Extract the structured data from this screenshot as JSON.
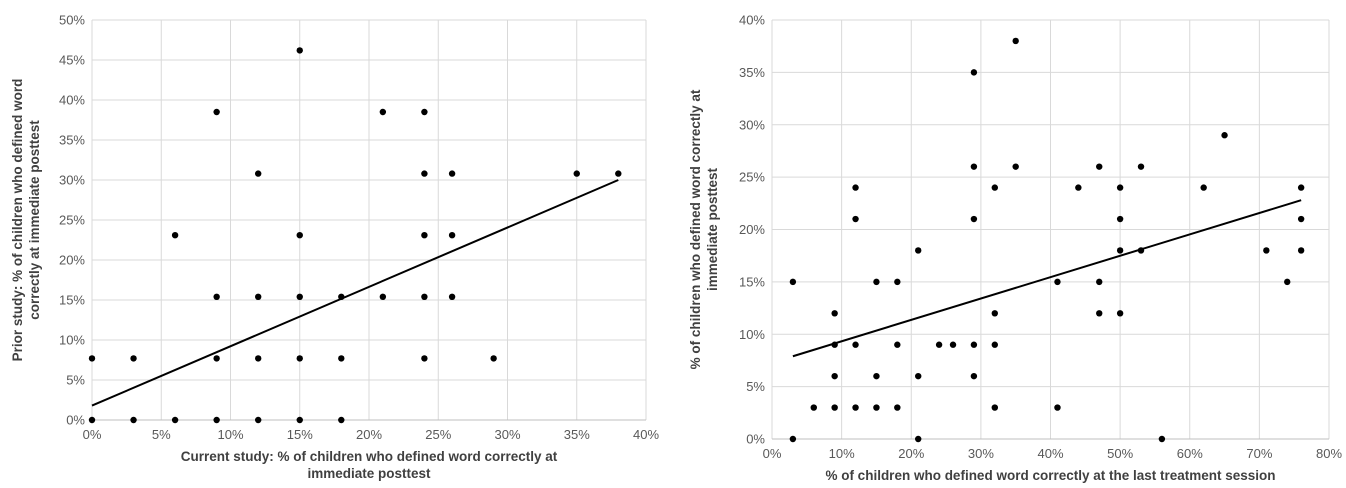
{
  "chart_data": [
    {
      "type": "scatter",
      "xlabel": "Current study: % of children who defined word correctly at immediate posttest",
      "ylabel": "Prior study: % of children who defined word correctly at immediate posttest",
      "xlim": [
        0,
        40
      ],
      "ylim": [
        0,
        50
      ],
      "x_ticks": [
        "0%",
        "5%",
        "10%",
        "15%",
        "20%",
        "25%",
        "30%",
        "35%",
        "40%"
      ],
      "y_ticks": [
        "0%",
        "5%",
        "10%",
        "15%",
        "20%",
        "25%",
        "30%",
        "35%",
        "40%",
        "45%",
        "50%"
      ],
      "grid": true,
      "trendline": [
        [
          0,
          1.8
        ],
        [
          38,
          30.0
        ]
      ],
      "points": [
        [
          0,
          0
        ],
        [
          0,
          7.7
        ],
        [
          3,
          0
        ],
        [
          3,
          7.7
        ],
        [
          6,
          0
        ],
        [
          6,
          23.1
        ],
        [
          9,
          0
        ],
        [
          9,
          7.7
        ],
        [
          9,
          15.4
        ],
        [
          9,
          38.5
        ],
        [
          12,
          0
        ],
        [
          12,
          7.7
        ],
        [
          12,
          15.4
        ],
        [
          12,
          30.8
        ],
        [
          15,
          0
        ],
        [
          15,
          7.7
        ],
        [
          15,
          15.4
        ],
        [
          15,
          23.1
        ],
        [
          15,
          46.2
        ],
        [
          18,
          0
        ],
        [
          18,
          7.7
        ],
        [
          18,
          15.4
        ],
        [
          21,
          15.4
        ],
        [
          21,
          38.5
        ],
        [
          24,
          7.7
        ],
        [
          24,
          15.4
        ],
        [
          24,
          23.1
        ],
        [
          24,
          30.8
        ],
        [
          24,
          38.5
        ],
        [
          26,
          15.4
        ],
        [
          26,
          23.1
        ],
        [
          26,
          30.8
        ],
        [
          29,
          7.7
        ],
        [
          35,
          30.8
        ],
        [
          38,
          30.8
        ]
      ]
    },
    {
      "type": "scatter",
      "xlabel": "% of children who defined word correctly at the last treatment session",
      "ylabel": "% of children who defined word correctly at immediate posttest",
      "xlim": [
        0,
        80
      ],
      "ylim": [
        0,
        40
      ],
      "x_ticks": [
        "0%",
        "10%",
        "20%",
        "30%",
        "40%",
        "50%",
        "60%",
        "70%",
        "80%"
      ],
      "y_ticks": [
        "0%",
        "5%",
        "10%",
        "15%",
        "20%",
        "25%",
        "30%",
        "35%",
        "40%"
      ],
      "grid": true,
      "trendline": [
        [
          3,
          7.9
        ],
        [
          76,
          22.8
        ]
      ],
      "points": [
        [
          3,
          0
        ],
        [
          3,
          15
        ],
        [
          6,
          3
        ],
        [
          9,
          3
        ],
        [
          9,
          6
        ],
        [
          9,
          9
        ],
        [
          9,
          12
        ],
        [
          12,
          3
        ],
        [
          12,
          9
        ],
        [
          12,
          21
        ],
        [
          12,
          24
        ],
        [
          15,
          3
        ],
        [
          15,
          6
        ],
        [
          15,
          15
        ],
        [
          18,
          3
        ],
        [
          18,
          9
        ],
        [
          18,
          15
        ],
        [
          21,
          0
        ],
        [
          21,
          6
        ],
        [
          21,
          18
        ],
        [
          24,
          9
        ],
        [
          26,
          9
        ],
        [
          29,
          6
        ],
        [
          29,
          9
        ],
        [
          29,
          21
        ],
        [
          29,
          26
        ],
        [
          29,
          35
        ],
        [
          32,
          3
        ],
        [
          32,
          9
        ],
        [
          32,
          12
        ],
        [
          32,
          24
        ],
        [
          35,
          26
        ],
        [
          35,
          38
        ],
        [
          41,
          3
        ],
        [
          41,
          15
        ],
        [
          44,
          24
        ],
        [
          47,
          12
        ],
        [
          47,
          15
        ],
        [
          47,
          26
        ],
        [
          50,
          12
        ],
        [
          50,
          18
        ],
        [
          50,
          21
        ],
        [
          50,
          24
        ],
        [
          53,
          18
        ],
        [
          53,
          26
        ],
        [
          56,
          0
        ],
        [
          62,
          24
        ],
        [
          65,
          29
        ],
        [
          71,
          18
        ],
        [
          74,
          15
        ],
        [
          76,
          18
        ],
        [
          76,
          21
        ],
        [
          76,
          24
        ]
      ]
    }
  ]
}
